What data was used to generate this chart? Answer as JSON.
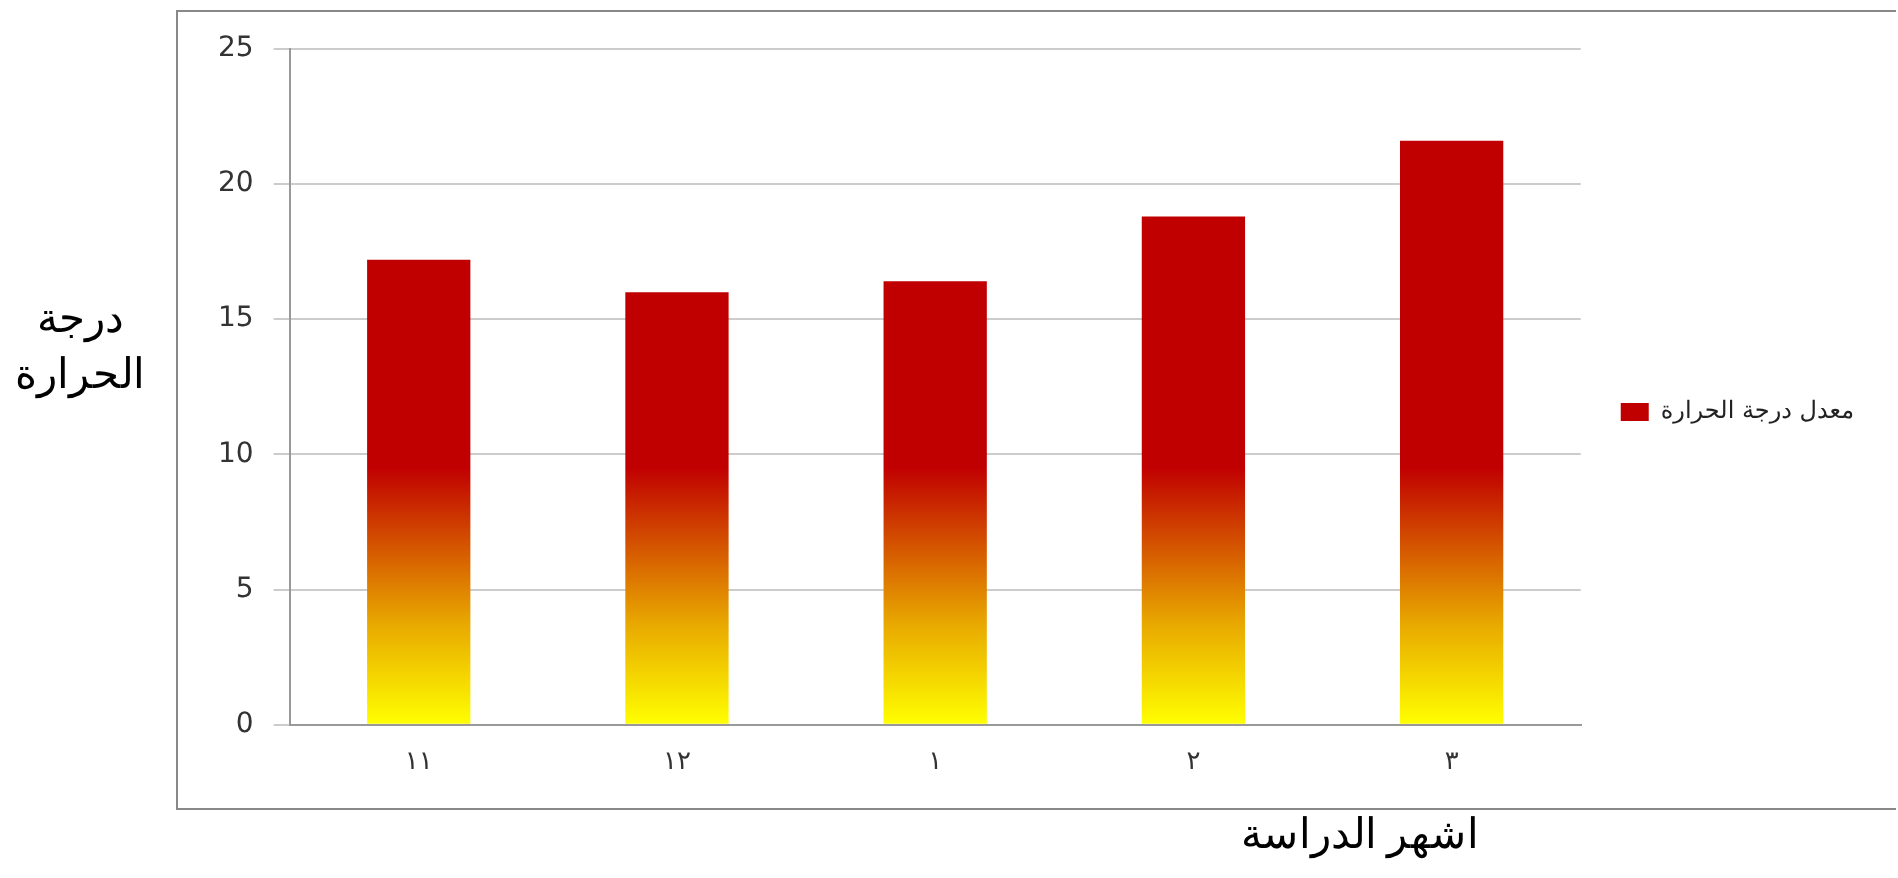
{
  "chart_data": {
    "type": "bar",
    "xlabel": "اشهر الدراسة",
    "ylabel": "درجة الحرارة",
    "categories": [
      "١١",
      "١٢",
      "١",
      "٢",
      "٣"
    ],
    "series": [
      {
        "name": "معدل درجة الحرارة",
        "color": "#c00000",
        "values": [
          17.2,
          16.0,
          16.4,
          18.8,
          21.6
        ]
      }
    ],
    "ylim": [
      0,
      25
    ],
    "yticks": [
      0,
      5,
      10,
      15,
      20,
      25
    ],
    "grid": "y",
    "legend": "right"
  }
}
